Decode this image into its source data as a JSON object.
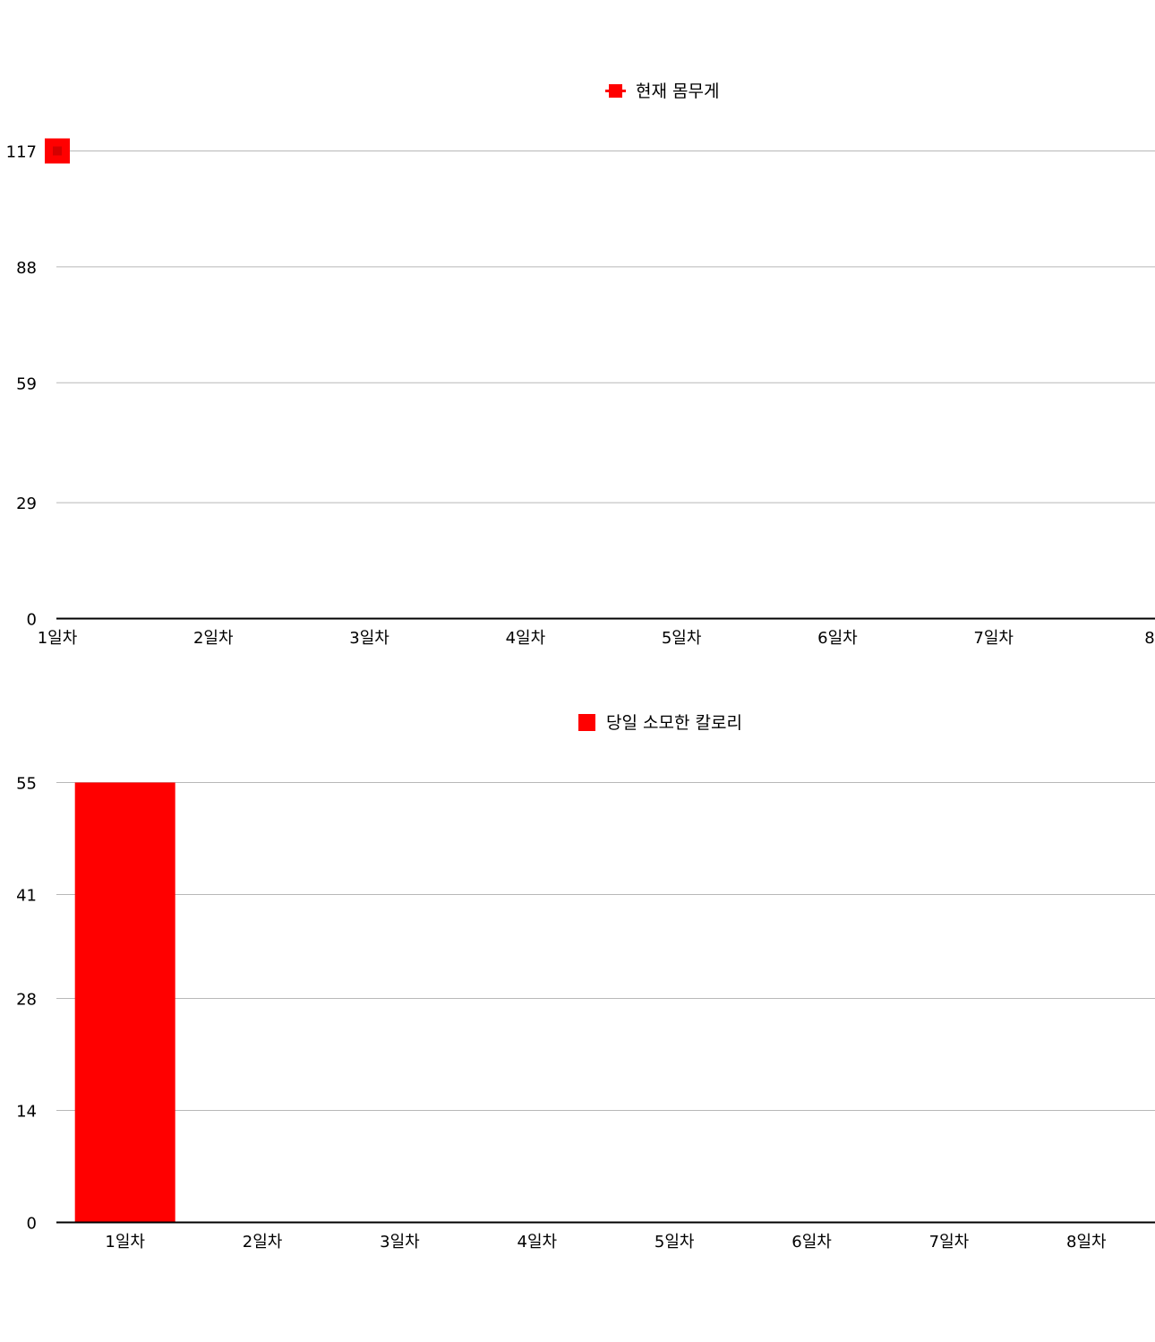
{
  "chart_data": [
    {
      "type": "line",
      "series": [
        {
          "name": "현재 몸무게",
          "values": [
            117,
            null,
            null,
            null,
            null,
            null,
            null,
            null
          ]
        }
      ],
      "categories": [
        "1일차",
        "2일차",
        "3일차",
        "4일차",
        "5일차",
        "6일차",
        "7일차",
        "8"
      ],
      "yticks": [
        0,
        29,
        59,
        88,
        117
      ],
      "ylim": [
        0,
        117
      ],
      "grid": true,
      "legend_position": "top-center",
      "color": "#ff0000"
    },
    {
      "type": "bar",
      "series": [
        {
          "name": "당일 소모한 칼로리",
          "values": [
            55,
            0,
            0,
            0,
            0,
            0,
            0,
            0
          ]
        }
      ],
      "categories": [
        "1일차",
        "2일차",
        "3일차",
        "4일차",
        "5일차",
        "6일차",
        "7일차",
        "8일차"
      ],
      "yticks": [
        0,
        14,
        28,
        41,
        55
      ],
      "ylim": [
        0,
        55
      ],
      "grid": true,
      "legend_position": "top-center",
      "color": "#ff0000"
    }
  ]
}
